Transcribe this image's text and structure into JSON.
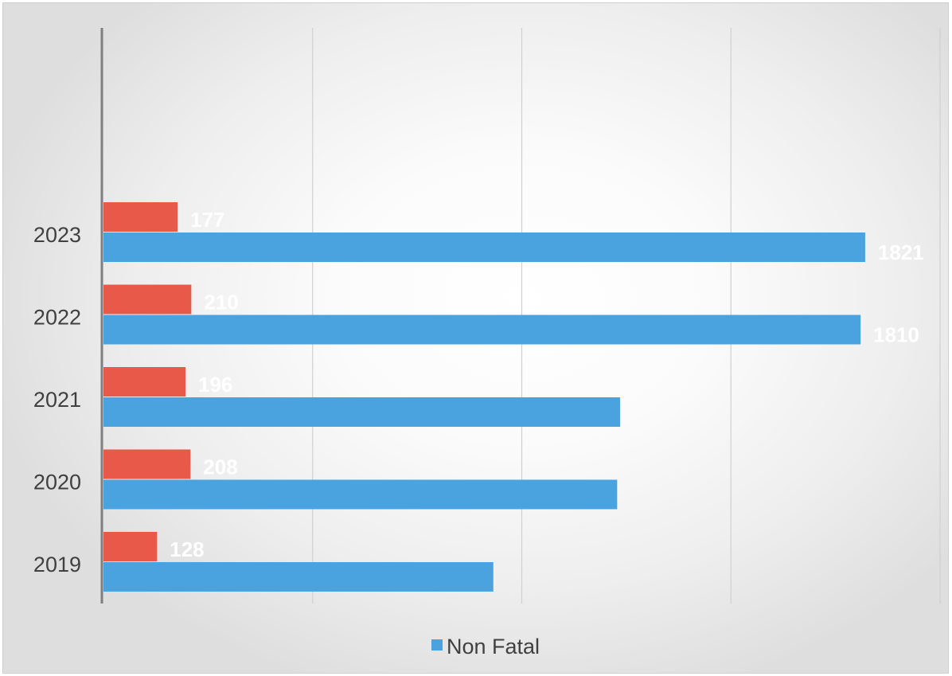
{
  "chart_data": {
    "type": "bar",
    "orientation": "horizontal",
    "categories": [
      "2019",
      "2020",
      "2021",
      "2022",
      "2023"
    ],
    "series": [
      {
        "name": "",
        "color": "#e8594a",
        "values": [
          128,
          208,
          196,
          210,
          177
        ]
      },
      {
        "name": "Non Fatal",
        "color": "#4aa3df",
        "values": [
          932,
          1228,
          1235,
          1810,
          1821
        ]
      }
    ],
    "xlim": [
      0,
      2000
    ],
    "grid": true,
    "legend_position": "bottom",
    "data_labels": {
      "fatal": [
        "128",
        "208",
        "196",
        "210",
        "177"
      ],
      "non_fatal": [
        "",
        "",
        "",
        "1810",
        "1821"
      ]
    }
  }
}
